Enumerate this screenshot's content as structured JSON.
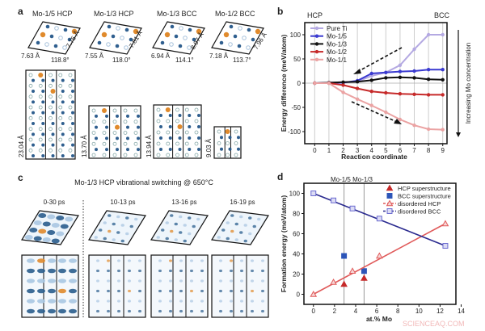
{
  "panel_labels": {
    "a": "a",
    "b": "b",
    "c": "c",
    "d": "d"
  },
  "panel_a": {
    "structures": [
      {
        "title": "Mo-1/5 HCP",
        "a": "7.63 Å",
        "b": "7.75 Å",
        "angle": "118.8°",
        "c": "23.04 Å"
      },
      {
        "title": "Mo-1/3 HCP",
        "a": "7.55 Å",
        "b": "7.81 Å",
        "angle": "118.0°",
        "c": "13.70 Å"
      },
      {
        "title": "Mo-1/3 BCC",
        "a": "6.94 Å",
        "b": "8.07 Å",
        "angle": "114.1°",
        "c": "13.94 Å"
      },
      {
        "title": "Mo-1/2 BCC",
        "a": "7.18 Å",
        "b": "7.96 Å",
        "angle": "113.7°",
        "c": "9.03 Å"
      }
    ],
    "colors": {
      "ti_dark": "#2f5f8f",
      "ti_light": "#a9c3dc",
      "mo": "#e08a2c"
    }
  },
  "panel_c": {
    "title": "Mo-1/3 HCP vibrational switching @ 650°C",
    "frames": [
      "0-30 ps",
      "10-13 ps",
      "13-16 ps",
      "16-19 ps"
    ]
  },
  "chart_data": [
    {
      "type": "line",
      "panel": "b",
      "xlabel": "Reaction coordinate",
      "ylabel": "Energy difference (meV/atom)",
      "x": [
        0,
        1,
        2,
        3,
        4,
        5,
        6,
        7,
        8,
        9
      ],
      "xticks": [
        0,
        1,
        2,
        3,
        4,
        5,
        6,
        7,
        8,
        9
      ],
      "yticks": [
        -100,
        -50,
        0,
        50,
        100
      ],
      "xlim": [
        -0.7,
        9.3
      ],
      "ylim": [
        -125,
        125
      ],
      "grid": "vertical",
      "legend_position": "top-left",
      "annotations": {
        "left": "HCP",
        "right": "BCC",
        "side_arrow": "Increasing Mo concentration"
      },
      "series": [
        {
          "name": "Pure Ti",
          "color": "#b4a9e2",
          "values": [
            0,
            0,
            1,
            3,
            15,
            22,
            37,
            70,
            100,
            100
          ]
        },
        {
          "name": "Mo-1/5",
          "color": "#3a3ad0",
          "values": [
            0,
            1,
            1,
            5,
            20,
            22,
            24,
            25,
            28,
            28
          ]
        },
        {
          "name": "Mo-1/3",
          "color": "#111111",
          "values": [
            0,
            1,
            2,
            3,
            6,
            11,
            12,
            11,
            8,
            7
          ]
        },
        {
          "name": "Mo-1/2",
          "color": "#c62a2a",
          "values": [
            0,
            0,
            -4,
            -11,
            -17,
            -20,
            -22,
            -23,
            -24,
            -24
          ]
        },
        {
          "name": "Mo-1/1",
          "color": "#eba3a3",
          "values": [
            0,
            0,
            -19,
            -33,
            -46,
            -60,
            -75,
            -87,
            -95,
            -96
          ]
        }
      ]
    },
    {
      "type": "scatter",
      "panel": "d",
      "xlabel": "at.% Mo",
      "ylabel": "Formation energy (meV/atom)",
      "xticks": [
        0,
        2,
        4,
        6,
        8,
        10,
        12,
        14
      ],
      "yticks": [
        0,
        20,
        40,
        60,
        80,
        100
      ],
      "xlim": [
        -0.9,
        13.5
      ],
      "ylim": [
        -10,
        110
      ],
      "legend_position": "top-right",
      "vertical_lines": [
        {
          "x": 2.9
        },
        {
          "x": 4.8
        }
      ],
      "top_label": "Mo-1/5 Mo-1/3",
      "series": [
        {
          "name": "HCP superstructure",
          "marker": "filled-triangle",
          "color": "#c62a2a",
          "x": [
            2.9,
            4.8
          ],
          "y": [
            10,
            16
          ]
        },
        {
          "name": "BCC superstructure",
          "marker": "filled-square",
          "color": "#2c55b8",
          "x": [
            2.9,
            4.8
          ],
          "y": [
            38,
            23
          ]
        },
        {
          "name": "disordered HCP",
          "marker": "open-triangle",
          "line": true,
          "color": "#e05a5a",
          "x": [
            0,
            1.9,
            3.7,
            6.25,
            12.5
          ],
          "y": [
            0,
            12,
            23,
            38,
            70
          ]
        },
        {
          "name": "disordered BCC",
          "marker": "open-square",
          "line": true,
          "color": "#2a2a8f",
          "x": [
            0,
            1.9,
            3.7,
            6.25,
            12.5
          ],
          "y": [
            100,
            93,
            85,
            75,
            48
          ]
        }
      ]
    }
  ],
  "watermark": "SCIENCEAQ.COM"
}
